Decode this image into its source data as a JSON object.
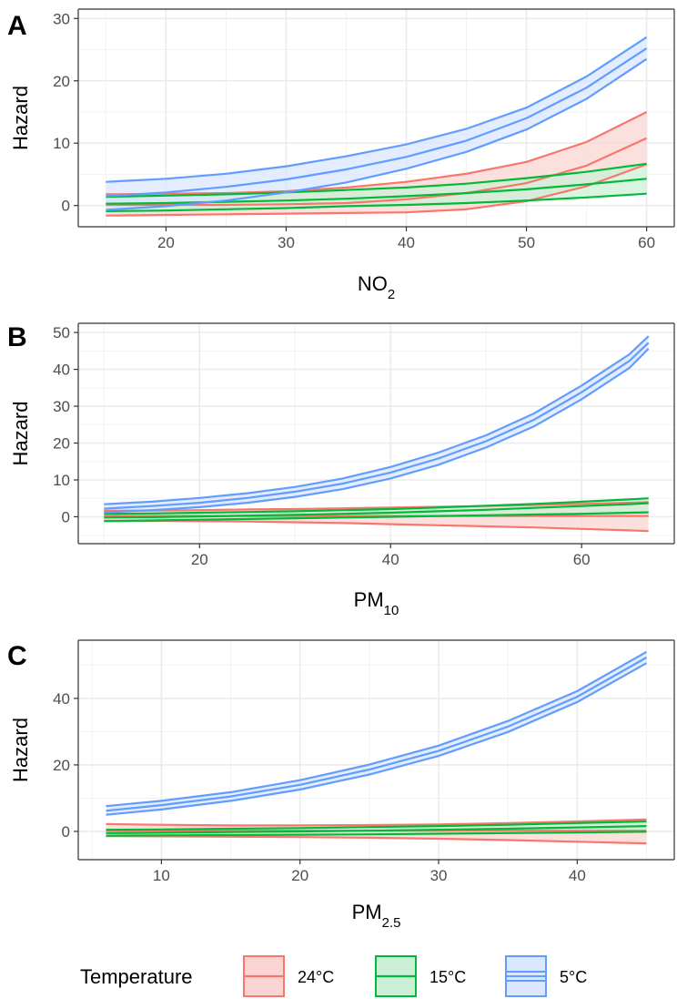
{
  "chart_data": [
    {
      "type": "area",
      "panel_label": "A",
      "xlabel": "NO",
      "xlabel_sub": "2",
      "ylabel": "Hazard",
      "xlim": [
        15,
        60
      ],
      "ylim": [
        0,
        30
      ],
      "x_ticks": [
        20,
        30,
        40,
        50,
        60
      ],
      "y_ticks": [
        0,
        10,
        20,
        30
      ],
      "grid": true,
      "x": [
        15,
        20,
        25,
        30,
        35,
        40,
        45,
        50,
        55,
        60
      ],
      "series": [
        {
          "name": "24°C",
          "color": "#F8766D",
          "fill": "#FBD5D2",
          "estimate": [
            0.1,
            0.1,
            0.1,
            0.2,
            0.4,
            1.0,
            2.0,
            3.6,
            6.4,
            10.8
          ],
          "lower": [
            -1.6,
            -1.5,
            -1.4,
            -1.3,
            -1.2,
            -1.1,
            -0.6,
            0.7,
            3.1,
            6.6
          ],
          "upper": [
            1.8,
            1.9,
            2.0,
            2.3,
            2.9,
            3.8,
            5.1,
            7.0,
            10.2,
            15.0
          ]
        },
        {
          "name": "15°C",
          "color": "#00BA38",
          "fill": "#CCF0D7",
          "estimate": [
            0.3,
            0.4,
            0.6,
            0.8,
            1.1,
            1.5,
            2.0,
            2.6,
            3.4,
            4.3
          ],
          "lower": [
            -0.9,
            -0.8,
            -0.6,
            -0.4,
            -0.1,
            0.1,
            0.4,
            0.8,
            1.3,
            1.9
          ],
          "upper": [
            1.4,
            1.6,
            1.8,
            2.1,
            2.5,
            2.9,
            3.5,
            4.4,
            5.4,
            6.7
          ]
        },
        {
          "name": "5°C",
          "color": "#619CFF",
          "fill": "#DAE7FF",
          "estimate": [
            1.5,
            2.1,
            3.0,
            4.2,
            5.8,
            7.8,
            10.4,
            14.0,
            18.9,
            25.2
          ],
          "lower": [
            -0.7,
            -0.1,
            0.8,
            2.1,
            3.7,
            5.9,
            8.6,
            12.2,
            17.1,
            23.5
          ],
          "upper": [
            3.8,
            4.3,
            5.1,
            6.3,
            7.9,
            9.8,
            12.3,
            15.7,
            20.7,
            27.0
          ]
        }
      ]
    },
    {
      "type": "area",
      "panel_label": "B",
      "xlabel": "PM",
      "xlabel_sub": "10",
      "ylabel": "Hazard",
      "xlim": [
        10,
        67
      ],
      "ylim": [
        0,
        50
      ],
      "x_ticks": [
        20,
        40,
        60
      ],
      "y_ticks": [
        0,
        10,
        20,
        30,
        40,
        50
      ],
      "grid": true,
      "x": [
        10,
        15,
        20,
        25,
        30,
        35,
        40,
        45,
        50,
        55,
        60,
        65,
        67
      ],
      "series": [
        {
          "name": "24°C",
          "color": "#F8766D",
          "fill": "#FBD5D2",
          "estimate": [
            0.2,
            0.2,
            0.2,
            0.2,
            0.2,
            0.2,
            0.2,
            0.2,
            0.2,
            0.2,
            0.2,
            0.2,
            0.2
          ],
          "lower": [
            -1.1,
            -1.1,
            -1.2,
            -1.3,
            -1.5,
            -1.7,
            -2.0,
            -2.3,
            -2.6,
            -2.9,
            -3.3,
            -3.7,
            -3.9
          ],
          "upper": [
            1.6,
            1.7,
            1.8,
            2.0,
            2.1,
            2.3,
            2.5,
            2.7,
            2.9,
            3.2,
            3.5,
            3.8,
            4.0
          ]
        },
        {
          "name": "15°C",
          "color": "#00BA38",
          "fill": "#CCF0D7",
          "estimate": [
            -0.2,
            -0.1,
            0.1,
            0.3,
            0.5,
            0.8,
            1.1,
            1.5,
            1.9,
            2.4,
            2.9,
            3.4,
            3.7
          ],
          "lower": [
            -1.2,
            -1.0,
            -0.8,
            -0.6,
            -0.4,
            -0.2,
            0.0,
            0.2,
            0.4,
            0.6,
            0.8,
            1.1,
            1.2
          ],
          "upper": [
            0.8,
            0.9,
            1.1,
            1.3,
            1.5,
            1.8,
            2.1,
            2.5,
            3.0,
            3.5,
            4.1,
            4.7,
            5.0
          ]
        },
        {
          "name": "5°C",
          "color": "#619CFF",
          "fill": "#DAE7FF",
          "estimate": [
            2.2,
            2.9,
            3.8,
            5.1,
            6.8,
            9.0,
            12.0,
            15.8,
            20.5,
            26.3,
            33.8,
            42.3,
            47.2
          ],
          "lower": [
            1.2,
            1.8,
            2.6,
            3.8,
            5.4,
            7.5,
            10.4,
            14.1,
            18.8,
            24.5,
            31.9,
            40.4,
            45.6
          ],
          "upper": [
            3.4,
            4.1,
            5.1,
            6.4,
            8.1,
            10.4,
            13.5,
            17.4,
            22.1,
            28.0,
            35.6,
            44.1,
            49.0
          ]
        }
      ]
    },
    {
      "type": "area",
      "panel_label": "C",
      "xlabel": "PM",
      "xlabel_sub": "2.5",
      "ylabel": "Hazard",
      "xlim": [
        6,
        45
      ],
      "ylim": [
        0,
        55
      ],
      "x_ticks": [
        10,
        20,
        30,
        40
      ],
      "y_ticks": [
        0,
        20,
        40
      ],
      "grid": true,
      "x": [
        6,
        10,
        15,
        20,
        25,
        30,
        35,
        40,
        45
      ],
      "series": [
        {
          "name": "24°C",
          "color": "#F8766D",
          "fill": "#FBD5D2",
          "estimate": [
            0.2,
            0.2,
            0.2,
            0.2,
            0.2,
            0.2,
            0.2,
            0.2,
            0.2
          ],
          "lower": [
            -1.4,
            -1.5,
            -1.6,
            -1.7,
            -1.9,
            -2.2,
            -2.6,
            -3.1,
            -3.6
          ],
          "upper": [
            2.2,
            2.0,
            1.8,
            1.8,
            1.9,
            2.1,
            2.5,
            3.0,
            3.6
          ]
        },
        {
          "name": "15°C",
          "color": "#00BA38",
          "fill": "#CCF0D7",
          "estimate": [
            -0.5,
            -0.4,
            -0.2,
            0.0,
            0.2,
            0.5,
            0.8,
            1.2,
            1.6
          ],
          "lower": [
            -1.3,
            -1.2,
            -1.1,
            -1.0,
            -0.9,
            -0.7,
            -0.5,
            -0.3,
            -0.1
          ],
          "upper": [
            0.5,
            0.6,
            0.8,
            1.0,
            1.3,
            1.6,
            2.0,
            2.5,
            3.0
          ]
        },
        {
          "name": "5°C",
          "color": "#619CFF",
          "fill": "#DAE7FF",
          "estimate": [
            6.2,
            7.9,
            10.5,
            14.0,
            18.6,
            24.2,
            31.5,
            40.5,
            52.3
          ],
          "lower": [
            5.0,
            6.6,
            9.2,
            12.6,
            17.1,
            22.7,
            29.9,
            38.9,
            50.6
          ],
          "upper": [
            7.6,
            9.2,
            11.8,
            15.4,
            20.1,
            25.8,
            33.2,
            42.2,
            54.0
          ]
        }
      ]
    }
  ],
  "legend": {
    "title": "Temperature",
    "position": "bottom",
    "items": [
      {
        "label": "24°C",
        "color": "#F8766D",
        "fill": "#FBD5D2"
      },
      {
        "label": "15°C",
        "color": "#00BA38",
        "fill": "#CCF0D7"
      },
      {
        "label": "5°C",
        "color": "#619CFF",
        "fill": "#DAE7FF"
      }
    ]
  }
}
